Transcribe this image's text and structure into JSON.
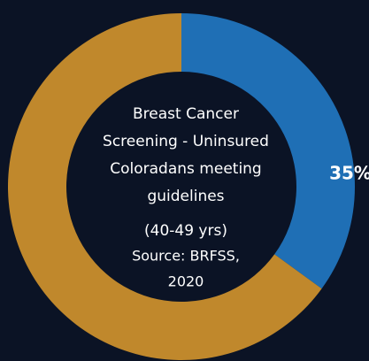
{
  "chart_data": {
    "type": "donut",
    "title_lines": [
      "Breast Cancer",
      "Screening - Uninsured",
      "Coloradans meeting",
      "guidelines",
      "(40-49 yrs)"
    ],
    "source_lines": [
      "Source: BRFSS,",
      "2020"
    ],
    "values": [
      35,
      65
    ],
    "value_labels": [
      "35%",
      null
    ],
    "colors": [
      "#1f6fb5",
      "#c0882c"
    ]
  }
}
